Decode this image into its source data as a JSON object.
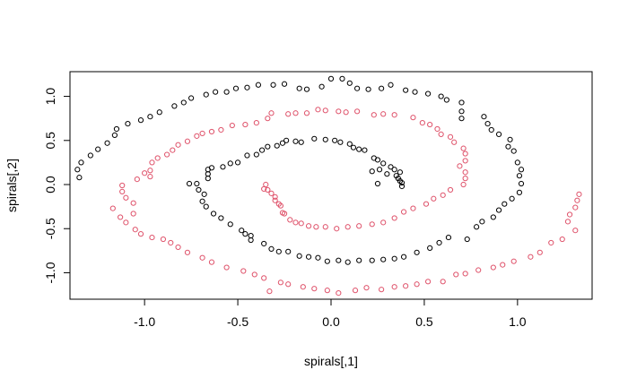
{
  "chart_data": {
    "type": "scatter",
    "title": "",
    "xlabel": "spirals[,1]",
    "ylabel": "spirals[,2]",
    "xlim": [
      -1.4,
      1.4
    ],
    "ylim": [
      -1.3,
      1.28
    ],
    "x_ticks": [
      -1.0,
      -0.5,
      0.0,
      0.5,
      1.0
    ],
    "x_tick_labels": [
      "-1.0",
      "-0.5",
      "0.0",
      "0.5",
      "1.0"
    ],
    "y_ticks": [
      -1.0,
      -0.5,
      0.0,
      0.5,
      1.0
    ],
    "y_tick_labels": [
      "-1.0",
      "-0.5",
      "0.0",
      "0.5",
      "1.0"
    ],
    "grid": false,
    "legend": "none",
    "marker": "open-circle",
    "series": [
      {
        "color": "#000000",
        "points": [
          [
            -1.35,
            0.08
          ],
          [
            -1.36,
            0.17
          ],
          [
            -1.34,
            0.25
          ],
          [
            -1.29,
            0.33
          ],
          [
            -1.25,
            0.4
          ],
          [
            -1.2,
            0.47
          ],
          [
            -1.16,
            0.56
          ],
          [
            -1.15,
            0.63
          ],
          [
            -1.09,
            0.69
          ],
          [
            -1.02,
            0.73
          ],
          [
            -0.97,
            0.77
          ],
          [
            -0.92,
            0.82
          ],
          [
            -0.84,
            0.89
          ],
          [
            -0.79,
            0.93
          ],
          [
            -0.75,
            0.98
          ],
          [
            -0.67,
            1.02
          ],
          [
            -0.62,
            1.05
          ],
          [
            -0.56,
            1.05
          ],
          [
            -0.51,
            1.09
          ],
          [
            -0.45,
            1.1
          ],
          [
            -0.39,
            1.13
          ],
          [
            -0.31,
            1.13
          ],
          [
            -0.25,
            1.14
          ],
          [
            -0.17,
            1.09
          ],
          [
            -0.13,
            1.08
          ],
          [
            -0.05,
            1.11
          ],
          [
            0.0,
            1.2
          ],
          [
            0.06,
            1.2
          ],
          [
            0.1,
            1.15
          ],
          [
            0.14,
            1.09
          ],
          [
            0.2,
            1.08
          ],
          [
            0.27,
            1.09
          ],
          [
            0.32,
            1.13
          ],
          [
            0.4,
            1.07
          ],
          [
            0.45,
            1.05
          ],
          [
            0.52,
            1.03
          ],
          [
            0.59,
            1.0
          ],
          [
            0.62,
            0.96
          ],
          [
            0.7,
            0.93
          ],
          [
            0.7,
            0.83
          ],
          [
            0.7,
            0.75
          ],
          [
            0.82,
            0.77
          ],
          [
            0.84,
            0.69
          ],
          [
            0.86,
            0.62
          ],
          [
            0.9,
            0.57
          ],
          [
            0.96,
            0.51
          ],
          [
            0.95,
            0.43
          ],
          [
            0.98,
            0.38
          ],
          [
            1.0,
            0.25
          ],
          [
            1.02,
            0.17
          ],
          [
            1.01,
            0.1
          ],
          [
            1.02,
            0.01
          ],
          [
            1.01,
            -0.09
          ],
          [
            0.97,
            -0.16
          ],
          [
            0.93,
            -0.22
          ],
          [
            0.9,
            -0.29
          ],
          [
            0.87,
            -0.37
          ],
          [
            0.81,
            -0.42
          ],
          [
            0.78,
            -0.48
          ],
          [
            0.73,
            -0.62
          ],
          [
            0.63,
            -0.6
          ],
          [
            0.58,
            -0.66
          ],
          [
            0.53,
            -0.72
          ],
          [
            0.46,
            -0.77
          ],
          [
            0.39,
            -0.82
          ],
          [
            0.34,
            -0.84
          ],
          [
            0.28,
            -0.85
          ],
          [
            0.22,
            -0.86
          ],
          [
            0.15,
            -0.86
          ],
          [
            0.09,
            -0.88
          ],
          [
            0.04,
            -0.86
          ],
          [
            -0.02,
            -0.87
          ],
          [
            -0.07,
            -0.83
          ],
          [
            -0.12,
            -0.82
          ],
          [
            -0.17,
            -0.81
          ],
          [
            -0.23,
            -0.76
          ],
          [
            -0.28,
            -0.76
          ],
          [
            -0.32,
            -0.73
          ],
          [
            -0.36,
            -0.67
          ],
          [
            -0.43,
            -0.63
          ],
          [
            -0.46,
            -0.56
          ],
          [
            -0.43,
            -0.58
          ],
          [
            -0.48,
            -0.52
          ],
          [
            -0.54,
            -0.45
          ],
          [
            -0.59,
            -0.38
          ],
          [
            -0.63,
            -0.33
          ],
          [
            -0.67,
            -0.25
          ],
          [
            -0.69,
            -0.19
          ],
          [
            -0.68,
            -0.11
          ],
          [
            -0.71,
            -0.06
          ],
          [
            -0.72,
            0.01
          ],
          [
            -0.76,
            0.01
          ],
          [
            -0.66,
            0.07
          ],
          [
            -0.66,
            0.12
          ],
          [
            -0.66,
            0.17
          ],
          [
            -0.64,
            0.19
          ],
          [
            -0.58,
            0.2
          ],
          [
            -0.54,
            0.24
          ],
          [
            -0.5,
            0.25
          ],
          [
            -0.45,
            0.33
          ],
          [
            -0.4,
            0.34
          ],
          [
            -0.37,
            0.39
          ],
          [
            -0.34,
            0.43
          ],
          [
            -0.29,
            0.44
          ],
          [
            -0.26,
            0.47
          ],
          [
            -0.24,
            0.5
          ],
          [
            -0.19,
            0.49
          ],
          [
            -0.16,
            0.48
          ],
          [
            -0.09,
            0.52
          ],
          [
            -0.03,
            0.51
          ],
          [
            0.02,
            0.5
          ],
          [
            0.05,
            0.48
          ],
          [
            0.1,
            0.46
          ],
          [
            0.12,
            0.42
          ],
          [
            0.15,
            0.4
          ],
          [
            0.18,
            0.39
          ],
          [
            0.23,
            0.3
          ],
          [
            0.25,
            0.28
          ],
          [
            0.28,
            0.24
          ],
          [
            0.32,
            0.2
          ],
          [
            0.34,
            0.17
          ],
          [
            0.35,
            0.1
          ],
          [
            0.36,
            0.07
          ],
          [
            0.37,
            0.04
          ],
          [
            0.38,
            -0.02
          ],
          [
            0.25,
            0.01
          ],
          [
            0.22,
            0.15
          ],
          [
            0.26,
            0.17
          ],
          [
            0.3,
            0.12
          ],
          [
            0.37,
            0.14
          ],
          [
            0.38,
            0.02
          ]
        ]
      },
      {
        "color": "#df536b",
        "points": [
          [
            1.33,
            -0.11
          ],
          [
            1.32,
            -0.18
          ],
          [
            1.31,
            -0.26
          ],
          [
            1.28,
            -0.34
          ],
          [
            1.27,
            -0.42
          ],
          [
            1.31,
            -0.52
          ],
          [
            1.24,
            -0.62
          ],
          [
            1.18,
            -0.66
          ],
          [
            1.12,
            -0.77
          ],
          [
            1.07,
            -0.82
          ],
          [
            0.98,
            -0.87
          ],
          [
            0.92,
            -0.91
          ],
          [
            0.87,
            -0.94
          ],
          [
            0.79,
            -0.97
          ],
          [
            0.72,
            -1.01
          ],
          [
            0.67,
            -1.02
          ],
          [
            0.6,
            -1.1
          ],
          [
            0.52,
            -1.1
          ],
          [
            0.46,
            -1.13
          ],
          [
            0.4,
            -1.15
          ],
          [
            0.34,
            -1.16
          ],
          [
            0.27,
            -1.19
          ],
          [
            0.19,
            -1.17
          ],
          [
            0.13,
            -1.2
          ],
          [
            0.04,
            -1.23
          ],
          [
            -0.02,
            -1.2
          ],
          [
            -0.09,
            -1.18
          ],
          [
            -0.15,
            -1.16
          ],
          [
            -0.23,
            -1.13
          ],
          [
            -0.27,
            -1.11
          ],
          [
            -0.33,
            -1.21
          ],
          [
            -0.36,
            -1.06
          ],
          [
            -0.41,
            -1.02
          ],
          [
            -0.47,
            -0.98
          ],
          [
            -0.56,
            -0.94
          ],
          [
            -0.64,
            -0.88
          ],
          [
            -0.69,
            -0.83
          ],
          [
            -0.77,
            -0.77
          ],
          [
            -0.82,
            -0.71
          ],
          [
            -0.86,
            -0.66
          ],
          [
            -0.9,
            -0.62
          ],
          [
            -0.96,
            -0.6
          ],
          [
            -1.02,
            -0.56
          ],
          [
            -1.05,
            -0.51
          ],
          [
            -1.1,
            -0.43
          ],
          [
            -1.13,
            -0.37
          ],
          [
            -1.06,
            -0.33
          ],
          [
            -1.17,
            -0.27
          ],
          [
            -1.06,
            -0.21
          ],
          [
            -1.1,
            -0.15
          ],
          [
            -1.12,
            -0.08
          ],
          [
            -1.12,
            -0.01
          ],
          [
            -1.04,
            0.06
          ],
          [
            -0.97,
            0.09
          ],
          [
            -1.0,
            0.13
          ],
          [
            -0.97,
            0.16
          ],
          [
            -0.96,
            0.25
          ],
          [
            -0.93,
            0.3
          ],
          [
            -0.88,
            0.34
          ],
          [
            -0.85,
            0.39
          ],
          [
            -0.82,
            0.45
          ],
          [
            -0.77,
            0.49
          ],
          [
            -0.72,
            0.55
          ],
          [
            -0.69,
            0.58
          ],
          [
            -0.64,
            0.6
          ],
          [
            -0.59,
            0.62
          ],
          [
            -0.53,
            0.67
          ],
          [
            -0.46,
            0.68
          ],
          [
            -0.4,
            0.7
          ],
          [
            -0.34,
            0.75
          ],
          [
            -0.32,
            0.81
          ],
          [
            -0.23,
            0.8
          ],
          [
            -0.19,
            0.81
          ],
          [
            -0.13,
            0.81
          ],
          [
            -0.07,
            0.85
          ],
          [
            -0.03,
            0.84
          ],
          [
            0.04,
            0.83
          ],
          [
            0.08,
            0.82
          ],
          [
            0.14,
            0.83
          ],
          [
            0.23,
            0.79
          ],
          [
            0.28,
            0.8
          ],
          [
            0.34,
            0.79
          ],
          [
            0.44,
            0.76
          ],
          [
            0.49,
            0.7
          ],
          [
            0.53,
            0.68
          ],
          [
            0.57,
            0.63
          ],
          [
            0.59,
            0.57
          ],
          [
            0.64,
            0.54
          ],
          [
            0.66,
            0.48
          ],
          [
            0.71,
            0.41
          ],
          [
            0.72,
            0.35
          ],
          [
            0.72,
            0.27
          ],
          [
            0.69,
            0.21
          ],
          [
            0.72,
            0.14
          ],
          [
            0.72,
            0.07
          ],
          [
            0.71,
            0.0
          ],
          [
            0.64,
            -0.06
          ],
          [
            0.6,
            -0.12
          ],
          [
            0.55,
            -0.16
          ],
          [
            0.51,
            -0.22
          ],
          [
            0.44,
            -0.27
          ],
          [
            0.39,
            -0.31
          ],
          [
            0.34,
            -0.38
          ],
          [
            0.28,
            -0.43
          ],
          [
            0.22,
            -0.45
          ],
          [
            0.15,
            -0.47
          ],
          [
            0.09,
            -0.48
          ],
          [
            0.03,
            -0.5
          ],
          [
            -0.03,
            -0.48
          ],
          [
            -0.08,
            -0.48
          ],
          [
            -0.12,
            -0.47
          ],
          [
            -0.16,
            -0.44
          ],
          [
            -0.19,
            -0.43
          ],
          [
            -0.22,
            -0.4
          ],
          [
            -0.26,
            -0.32
          ],
          [
            -0.28,
            -0.22
          ],
          [
            -0.3,
            -0.14
          ],
          [
            -0.34,
            -0.06
          ],
          [
            -0.35,
            0.0
          ],
          [
            -0.36,
            -0.05
          ],
          [
            -0.32,
            -0.1
          ],
          [
            -0.3,
            -0.18
          ],
          [
            -0.27,
            -0.24
          ],
          [
            -0.25,
            -0.33
          ]
        ]
      }
    ]
  }
}
